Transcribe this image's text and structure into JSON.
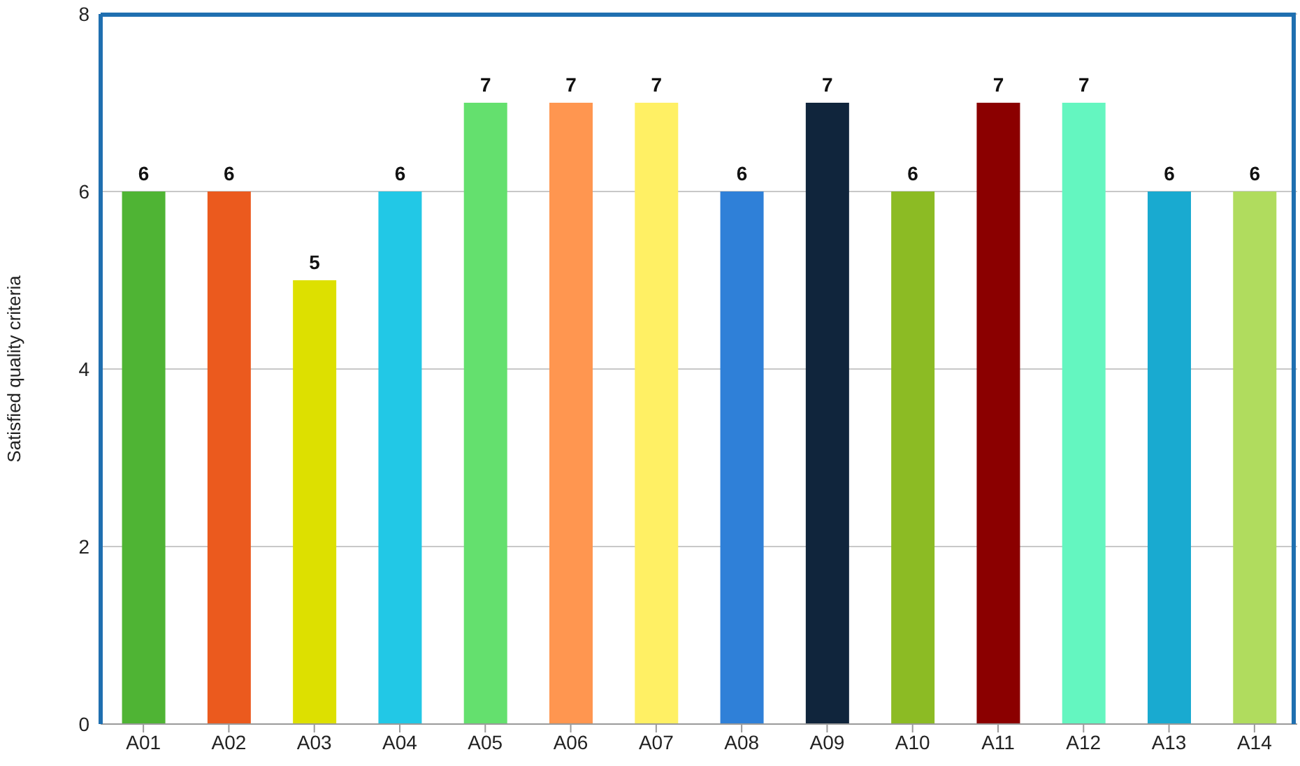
{
  "chart_data": {
    "type": "bar",
    "ylabel": "Satisfied quality criteria",
    "categories": [
      "A01",
      "A02",
      "A03",
      "A04",
      "A05",
      "A06",
      "A07",
      "A08",
      "A09",
      "A10",
      "A11",
      "A12",
      "A13",
      "A14"
    ],
    "values": [
      6,
      6,
      5,
      6,
      7,
      7,
      7,
      6,
      7,
      6,
      7,
      7,
      6,
      6
    ],
    "colors": [
      "#4fb434",
      "#eb5a1e",
      "#dde000",
      "#22c8e6",
      "#64e06e",
      "#ff9650",
      "#fff064",
      "#2f80d8",
      "#10253c",
      "#8cbb24",
      "#8b0000",
      "#64f6c0",
      "#19aad0",
      "#b0dc5e"
    ],
    "ylim": [
      0,
      8
    ],
    "yticks": [
      0,
      2,
      4,
      6,
      8
    ],
    "grid": "y",
    "data_labels": true
  }
}
